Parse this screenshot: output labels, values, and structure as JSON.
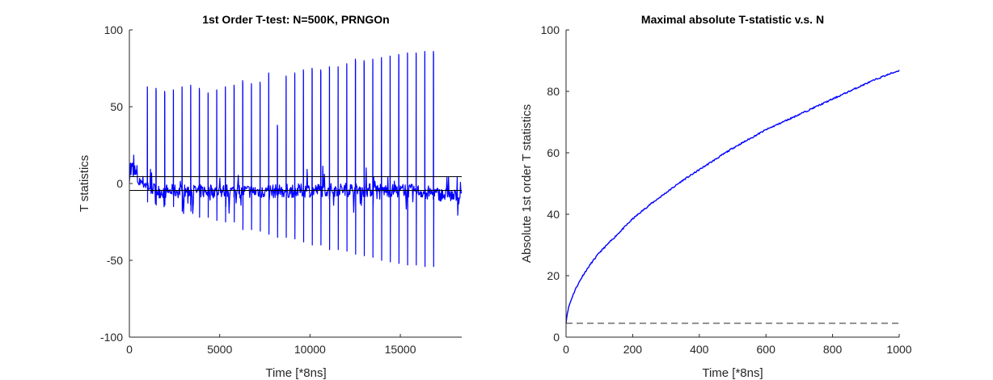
{
  "chart_data": [
    {
      "type": "line",
      "title": "1st Order T-test: N=500K, PRNGOn",
      "xlabel": "Time [*8ns]",
      "ylabel": "T statistics",
      "xlim": [
        0,
        18400
      ],
      "ylim": [
        -100,
        100
      ],
      "xticks": [
        0,
        5000,
        10000,
        15000
      ],
      "yticks": [
        -100,
        -50,
        0,
        50,
        100
      ],
      "xtick_labels": [
        "0",
        "5000",
        "10000",
        "15000"
      ],
      "ytick_labels": [
        "-100",
        "-50",
        "0",
        "50",
        "100"
      ],
      "thresholds": [
        4.5,
        -4.5
      ],
      "series": [
        {
          "color": "#0000ff",
          "baseline": {
            "x": [
              0,
              600,
              1500,
              4000,
              8000,
              12000,
              16000,
              18400
            ],
            "y": [
              10,
              2,
              -5,
              -5,
              -5,
              -4,
              -5,
              -9
            ]
          },
          "spike_x": [
            1000,
            1480,
            1960,
            2440,
            2920,
            3400,
            3880,
            4360,
            4840,
            5320,
            5800,
            6280,
            6760,
            7240,
            7720,
            8200,
            8680,
            9160,
            9640,
            10120,
            10600,
            11080,
            11560,
            12040,
            12520,
            13000,
            13480,
            13960,
            14440,
            14920,
            15400,
            15880,
            16360,
            16840
          ],
          "spike_peak": [
            63,
            62,
            60,
            61,
            63,
            64,
            62,
            59,
            61,
            63,
            64,
            67,
            65,
            66,
            72,
            38,
            70,
            72,
            74,
            75,
            74,
            76,
            76,
            78,
            81,
            80,
            81,
            82,
            83,
            84,
            85,
            85,
            86,
            86
          ],
          "spike_trough": [
            -12,
            -14,
            -14,
            -15,
            -18,
            -18,
            -22,
            -22,
            -24,
            -25,
            -25,
            -30,
            -30,
            -31,
            -33,
            -35,
            -35,
            -36,
            -38,
            -40,
            -40,
            -43,
            -43,
            -44,
            -46,
            -47,
            -48,
            -50,
            -51,
            -52,
            -53,
            -53,
            -54,
            -54
          ]
        }
      ]
    },
    {
      "type": "line",
      "title": "Maximal absolute T-statistic v.s. N",
      "xlabel": "Time [*8ns]",
      "ylabel": "Absolute 1st order T statistics",
      "xlim": [
        0,
        1000
      ],
      "ylim": [
        0,
        100
      ],
      "xticks": [
        0,
        200,
        400,
        600,
        800,
        1000
      ],
      "yticks": [
        0,
        20,
        40,
        60,
        80,
        100
      ],
      "xtick_labels": [
        "0",
        "200",
        "400",
        "600",
        "800",
        "1000"
      ],
      "ytick_labels": [
        "0",
        "20",
        "40",
        "60",
        "80",
        "100"
      ],
      "threshold": 4.5,
      "series": [
        {
          "color": "#0000ff",
          "x": [
            0,
            5,
            10,
            20,
            30,
            50,
            75,
            100,
            150,
            200,
            250,
            300,
            350,
            400,
            450,
            500,
            550,
            600,
            650,
            700,
            750,
            800,
            850,
            900,
            950,
            1000
          ],
          "y": [
            4.8,
            8.5,
            10.5,
            13.5,
            16,
            20,
            24,
            27.5,
            33,
            38.5,
            43,
            47,
            51,
            54.5,
            58,
            61.5,
            64.5,
            67.5,
            70,
            72.5,
            75,
            77.5,
            80,
            82.5,
            84.8,
            86.8
          ]
        }
      ]
    }
  ]
}
